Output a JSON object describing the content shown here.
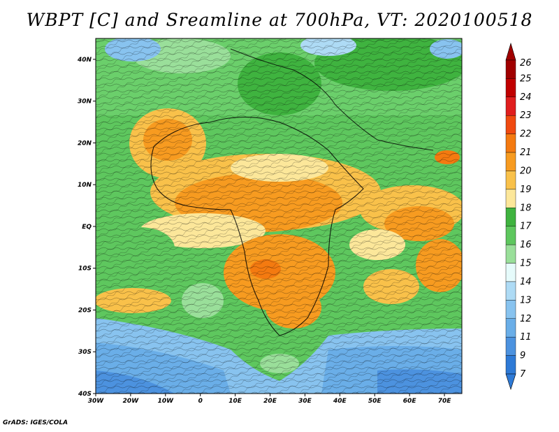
{
  "title": "WBPT [C] and Sreamline at 700hPa, VT: 2020100518",
  "credit": "GrADS: IGES/COLA",
  "axes": {
    "lon_labels": [
      "30W",
      "20W",
      "10W",
      "0",
      "10E",
      "20E",
      "30E",
      "40E",
      "50E",
      "60E",
      "70E"
    ],
    "lon_values": [
      -30,
      -20,
      -10,
      0,
      10,
      20,
      30,
      40,
      50,
      60,
      70
    ],
    "lon_range": [
      -30,
      75
    ],
    "lat_labels": [
      "40N",
      "30N",
      "20N",
      "10N",
      "EQ",
      "10S",
      "20S",
      "30S",
      "40S"
    ],
    "lat_values": [
      40,
      30,
      20,
      10,
      0,
      -10,
      -20,
      -30,
      -40
    ],
    "lat_range": [
      -40,
      45
    ]
  },
  "colorbar": {
    "labels": [
      "26",
      "25",
      "24",
      "23",
      "22",
      "21",
      "20",
      "19",
      "18",
      "17",
      "16",
      "15",
      "14",
      "13",
      "12",
      "11",
      "9",
      "7"
    ],
    "colors": [
      "#a00000",
      "#c00000",
      "#e01e1e",
      "#f04a10",
      "#f47a10",
      "#f79b20",
      "#f9c14a",
      "#fce79a",
      "#3fb33f",
      "#5ec75e",
      "#9adf9a",
      "#e6fbfb",
      "#aedbf5",
      "#88c3ef",
      "#6aaee8",
      "#4c92df",
      "#2e7ad6"
    ]
  }
}
